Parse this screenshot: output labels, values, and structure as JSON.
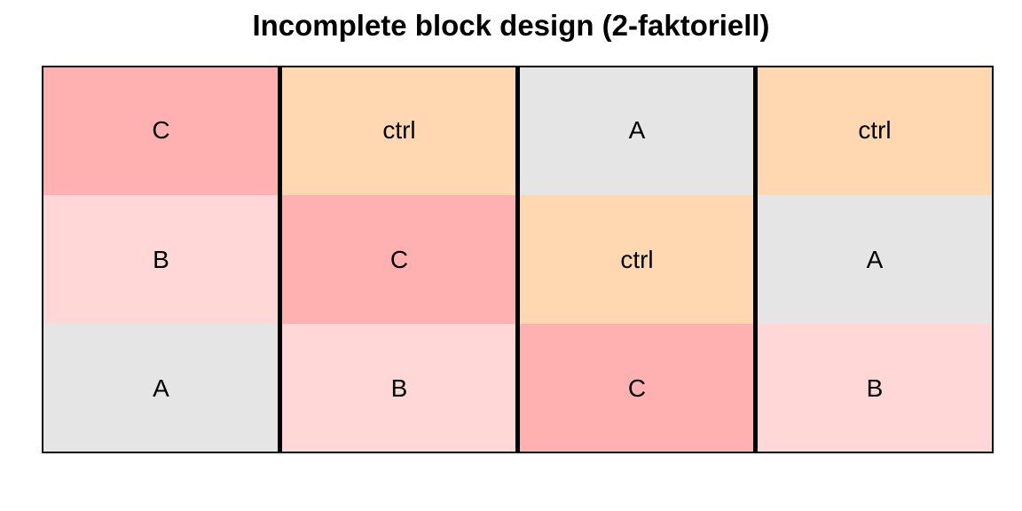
{
  "title": "Incomplete block design (2-faktoriell)",
  "colors": {
    "A": "#e5e5e5",
    "B": "#ffd7d7",
    "C": "#ffb1b1",
    "ctrl": "#ffd7b1"
  },
  "blocks": [
    {
      "cells": [
        "C",
        "B",
        "A"
      ]
    },
    {
      "cells": [
        "ctrl",
        "C",
        "B"
      ]
    },
    {
      "cells": [
        "A",
        "ctrl",
        "C"
      ]
    },
    {
      "cells": [
        "ctrl",
        "A",
        "B"
      ]
    }
  ]
}
